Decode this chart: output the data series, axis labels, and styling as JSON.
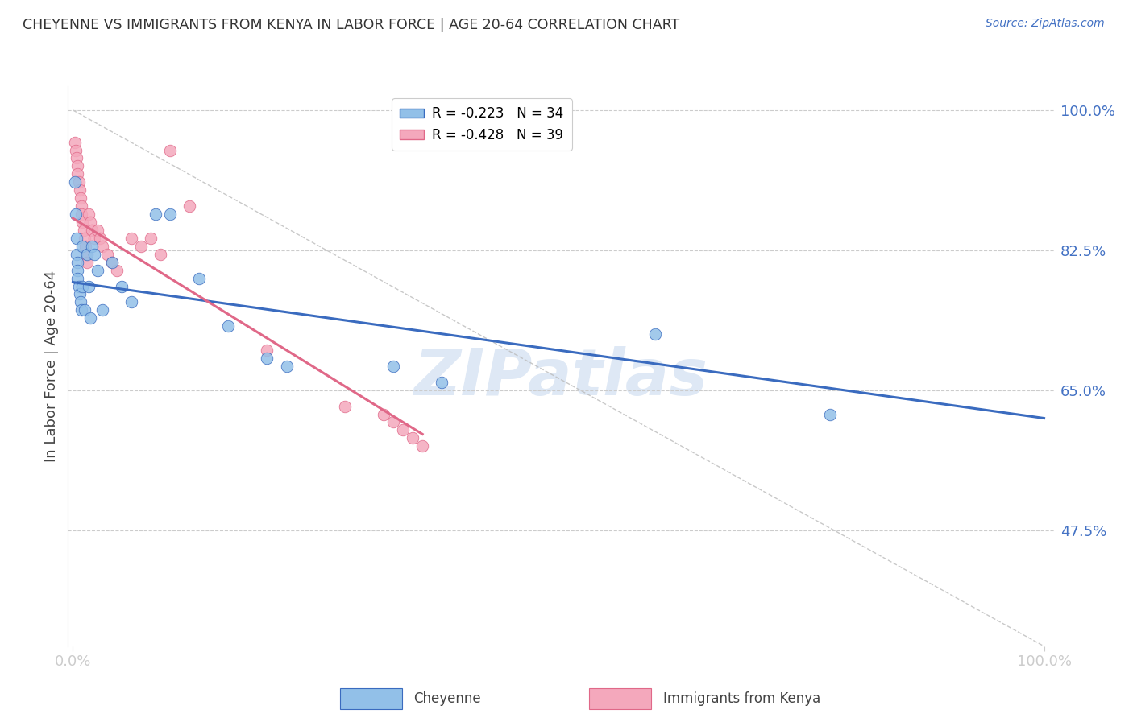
{
  "title": "CHEYENNE VS IMMIGRANTS FROM KENYA IN LABOR FORCE | AGE 20-64 CORRELATION CHART",
  "source": "Source: ZipAtlas.com",
  "ylabel": "In Labor Force | Age 20-64",
  "ytick_labels": [
    "100.0%",
    "82.5%",
    "65.0%",
    "47.5%"
  ],
  "ytick_values": [
    1.0,
    0.825,
    0.65,
    0.475
  ],
  "ymin": 0.33,
  "ymax": 1.03,
  "xmin": -0.005,
  "xmax": 1.01,
  "legend_r1": "R = -0.223",
  "legend_n1": "N = 34",
  "legend_r2": "R = -0.428",
  "legend_n2": "N = 39",
  "color_blue": "#92C0E8",
  "color_pink": "#F4A8BC",
  "line_blue": "#3A6BBF",
  "line_pink": "#E06888",
  "line_dashed_color": "#BBBBBB",
  "watermark": "ZIPatlas",
  "cheyenne_x": [
    0.002,
    0.003,
    0.004,
    0.004,
    0.005,
    0.005,
    0.005,
    0.006,
    0.007,
    0.008,
    0.009,
    0.01,
    0.01,
    0.012,
    0.015,
    0.016,
    0.018,
    0.02,
    0.022,
    0.025,
    0.03,
    0.04,
    0.05,
    0.06,
    0.085,
    0.1,
    0.13,
    0.16,
    0.2,
    0.22,
    0.33,
    0.38,
    0.6,
    0.78
  ],
  "cheyenne_y": [
    0.91,
    0.87,
    0.84,
    0.82,
    0.81,
    0.8,
    0.79,
    0.78,
    0.77,
    0.76,
    0.75,
    0.83,
    0.78,
    0.75,
    0.82,
    0.78,
    0.74,
    0.83,
    0.82,
    0.8,
    0.75,
    0.81,
    0.78,
    0.76,
    0.87,
    0.87,
    0.79,
    0.73,
    0.69,
    0.68,
    0.68,
    0.66,
    0.72,
    0.62
  ],
  "kenya_x": [
    0.002,
    0.003,
    0.004,
    0.005,
    0.005,
    0.006,
    0.007,
    0.008,
    0.009,
    0.009,
    0.01,
    0.011,
    0.012,
    0.013,
    0.014,
    0.015,
    0.016,
    0.018,
    0.02,
    0.022,
    0.025,
    0.028,
    0.03,
    0.035,
    0.04,
    0.045,
    0.06,
    0.07,
    0.08,
    0.09,
    0.1,
    0.12,
    0.2,
    0.28,
    0.32,
    0.33,
    0.34,
    0.35,
    0.36
  ],
  "kenya_y": [
    0.96,
    0.95,
    0.94,
    0.93,
    0.92,
    0.91,
    0.9,
    0.89,
    0.88,
    0.87,
    0.86,
    0.85,
    0.84,
    0.83,
    0.82,
    0.81,
    0.87,
    0.86,
    0.85,
    0.84,
    0.85,
    0.84,
    0.83,
    0.82,
    0.81,
    0.8,
    0.84,
    0.83,
    0.84,
    0.82,
    0.95,
    0.88,
    0.7,
    0.63,
    0.62,
    0.61,
    0.6,
    0.59,
    0.58
  ],
  "blue_line_x": [
    0.0,
    1.0
  ],
  "blue_line_y": [
    0.785,
    0.615
  ],
  "pink_line_x": [
    0.0,
    0.36
  ],
  "pink_line_y": [
    0.865,
    0.595
  ],
  "diag_line_x": [
    0.0,
    1.0
  ],
  "diag_line_y": [
    1.0,
    0.33
  ]
}
